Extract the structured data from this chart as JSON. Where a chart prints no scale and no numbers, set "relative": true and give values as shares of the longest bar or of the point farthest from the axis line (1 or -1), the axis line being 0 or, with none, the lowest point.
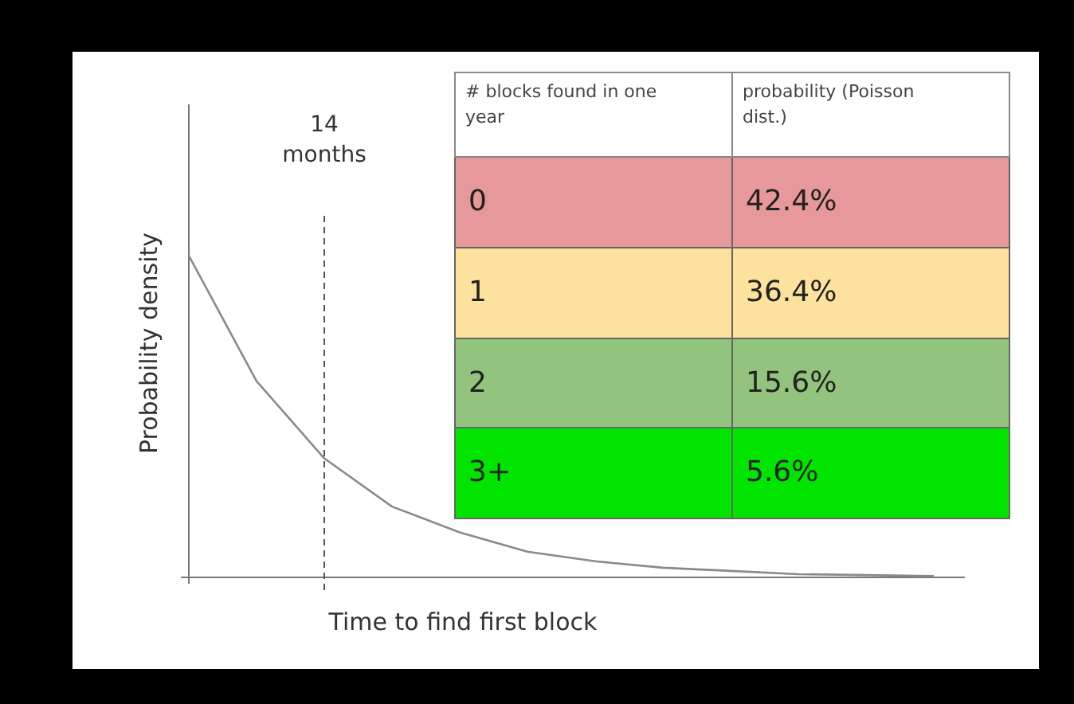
{
  "chart_data": [
    {
      "type": "line",
      "relative": true,
      "xlabel": "Time to find first block",
      "ylabel": "Probability density",
      "categories": [
        null,
        null,
        null,
        null,
        null,
        null,
        null,
        null,
        null,
        null,
        null,
        null
      ],
      "series": [
        {
          "color": "#8a8a8a",
          "values": [
            1,
            0.61,
            0.37,
            0.22,
            0.14,
            0.08,
            0.05,
            0.03,
            0.02,
            0.01,
            0.007,
            0.004
          ]
        }
      ],
      "annotations": [
        "14 months"
      ]
    },
    {
      "type": "other",
      "annotations": [
        "# blocks found in one year",
        "probability (Poisson dist.)"
      ],
      "categories": [
        "0",
        "1",
        "2",
        "3+"
      ],
      "value_labels": [
        "42.4%",
        "36.4%",
        "15.6%",
        "5.6%"
      ],
      "colors": [
        "#e6989a",
        "#fde29e",
        "#93c47d",
        "#00e400"
      ]
    }
  ]
}
